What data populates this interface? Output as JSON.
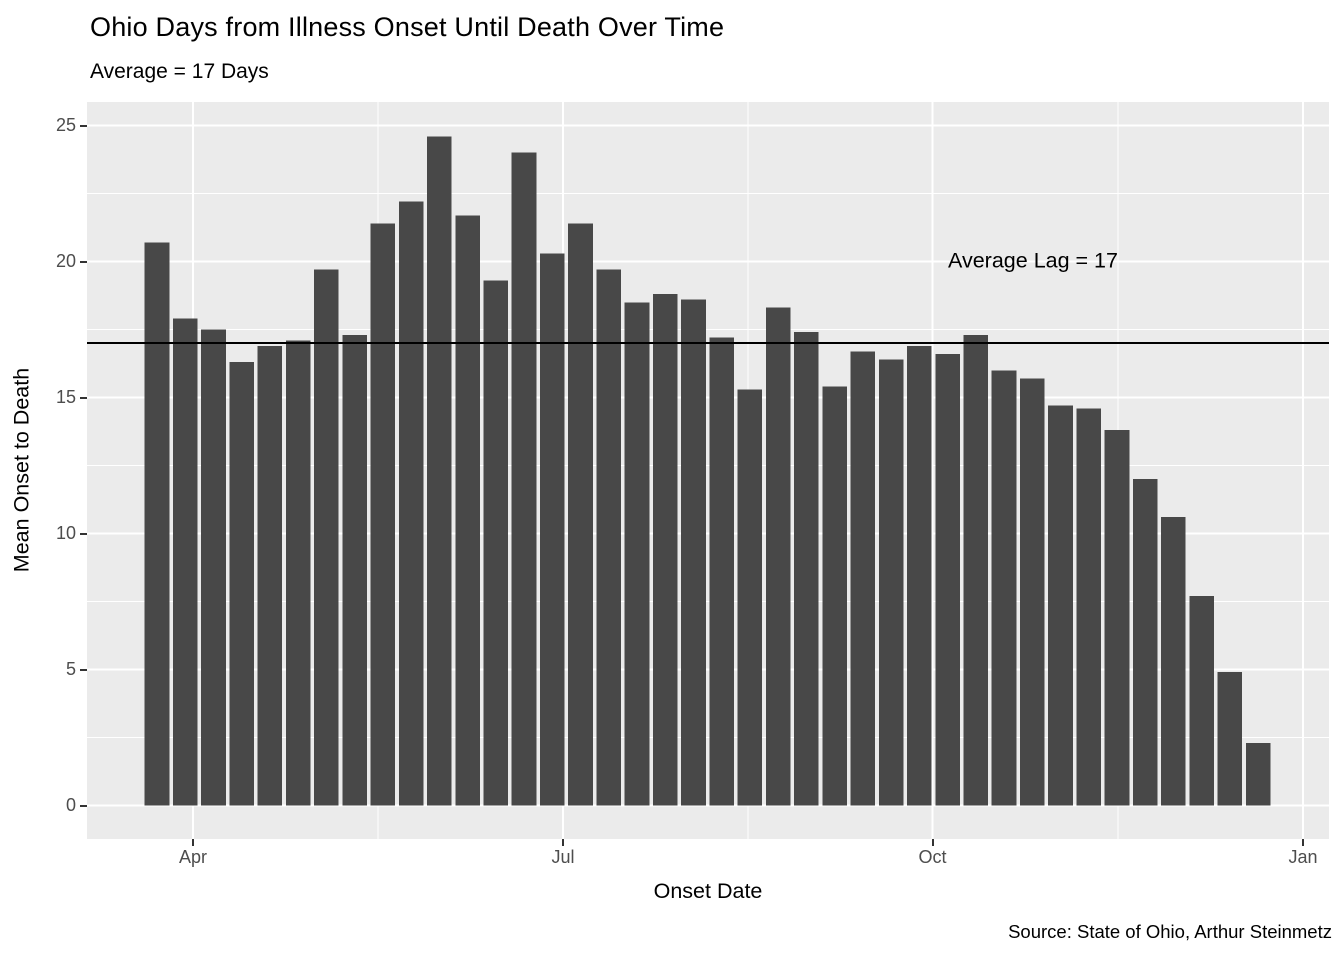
{
  "title": "Ohio Days from Illness Onset Until Death Over Time",
  "subtitle": "Average = 17 Days",
  "annotation": "Average Lag = 17",
  "caption": "Source: State of Ohio, Arthur Steinmetz",
  "axes": {
    "x_title": "Onset Date",
    "y_title": "Mean Onset to Death",
    "x_ticks": [
      "Apr",
      "Jul",
      "Oct",
      "Jan"
    ],
    "y_ticks": [
      "0",
      "5",
      "10",
      "15",
      "20",
      "25"
    ]
  },
  "colors": {
    "panel_bg": "#EBEBEB",
    "grid_major": "#FFFFFF",
    "grid_minor": "#FFFFFF",
    "bar": "#484848",
    "average_line": "#000000",
    "tick_mark": "#333333",
    "tick_text": "#4D4D4D",
    "text": "#000000"
  },
  "chart_data": {
    "type": "bar",
    "title": "Ohio Days from Illness Onset Until Death Over Time",
    "subtitle": "Average = 17 Days",
    "xlabel": "Onset Date",
    "ylabel": "Mean Onset to Death",
    "x_tick_labels": [
      "Apr",
      "Jul",
      "Oct",
      "Jan"
    ],
    "ylim": [
      0,
      25.8
    ],
    "grid": true,
    "legend": "none",
    "reference_line": 17,
    "reference_line_label": "Average Lag = 17",
    "x": [
      "2020-03-23",
      "2020-03-30",
      "2020-04-06",
      "2020-04-13",
      "2020-04-20",
      "2020-04-27",
      "2020-05-04",
      "2020-05-11",
      "2020-05-18",
      "2020-05-25",
      "2020-06-01",
      "2020-06-08",
      "2020-06-15",
      "2020-06-22",
      "2020-06-29",
      "2020-07-06",
      "2020-07-13",
      "2020-07-20",
      "2020-07-27",
      "2020-08-03",
      "2020-08-10",
      "2020-08-17",
      "2020-08-24",
      "2020-08-31",
      "2020-09-07",
      "2020-09-14",
      "2020-09-21",
      "2020-09-28",
      "2020-10-05",
      "2020-10-12",
      "2020-10-19",
      "2020-10-26",
      "2020-11-02",
      "2020-11-09",
      "2020-11-16",
      "2020-11-23",
      "2020-11-30",
      "2020-12-07",
      "2020-12-14",
      "2020-12-21"
    ],
    "values": [
      20.7,
      17.9,
      17.5,
      16.3,
      16.9,
      17.1,
      19.7,
      17.3,
      21.4,
      22.2,
      24.6,
      21.7,
      19.3,
      24.0,
      20.3,
      21.4,
      19.7,
      18.5,
      18.8,
      18.6,
      17.2,
      15.3,
      18.3,
      17.4,
      15.4,
      16.7,
      16.4,
      16.9,
      16.6,
      17.3,
      16.0,
      15.7,
      14.7,
      14.6,
      13.8,
      12.0,
      10.6,
      7.7,
      4.9,
      2.3
    ]
  }
}
